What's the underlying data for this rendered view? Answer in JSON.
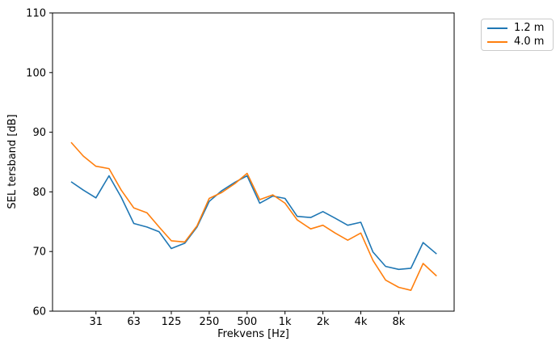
{
  "chart_data": {
    "type": "line",
    "x_scale": "log",
    "title": "",
    "xlabel": "Frekvens [Hz]",
    "ylabel": "SEL tersband [dB]",
    "ylim": [
      60,
      110
    ],
    "yticks": [
      60,
      70,
      80,
      90,
      100,
      110
    ],
    "xticks": [
      {
        "value": 31.5,
        "label": "31"
      },
      {
        "value": 63,
        "label": "63"
      },
      {
        "value": 125,
        "label": "125"
      },
      {
        "value": 250,
        "label": "250"
      },
      {
        "value": 500,
        "label": "500"
      },
      {
        "value": 1000,
        "label": "1k"
      },
      {
        "value": 2000,
        "label": "2k"
      },
      {
        "value": 4000,
        "label": "4k"
      },
      {
        "value": 8000,
        "label": "8k"
      }
    ],
    "x": [
      20,
      25,
      31.5,
      40,
      50,
      63,
      80,
      100,
      125,
      160,
      200,
      250,
      315,
      400,
      500,
      630,
      800,
      1000,
      1250,
      1600,
      2000,
      2500,
      3150,
      4000,
      5000,
      6300,
      8000,
      10000,
      12500,
      16000
    ],
    "series": [
      {
        "name": "1.2 m",
        "color": "#1f77b4",
        "values": [
          81.7,
          80.3,
          79.0,
          82.7,
          79.1,
          74.7,
          74.1,
          73.3,
          70.5,
          71.4,
          74.1,
          78.4,
          80.2,
          81.6,
          82.7,
          78.1,
          79.3,
          78.9,
          75.9,
          75.7,
          76.7,
          75.6,
          74.4,
          74.9,
          69.9,
          67.5,
          67.0,
          67.2,
          71.5,
          69.6
        ]
      },
      {
        "name": "4.0 m",
        "color": "#ff7f0e",
        "values": [
          88.3,
          86.0,
          84.3,
          83.9,
          80.3,
          77.3,
          76.5,
          74.1,
          71.8,
          71.6,
          74.3,
          78.9,
          79.9,
          81.4,
          83.1,
          78.7,
          79.5,
          78.1,
          75.3,
          73.8,
          74.4,
          73.1,
          71.9,
          73.1,
          68.5,
          65.2,
          64.0,
          63.5,
          68.0,
          65.9
        ]
      }
    ],
    "grid": false,
    "legend_position": "upper-right-outside"
  }
}
